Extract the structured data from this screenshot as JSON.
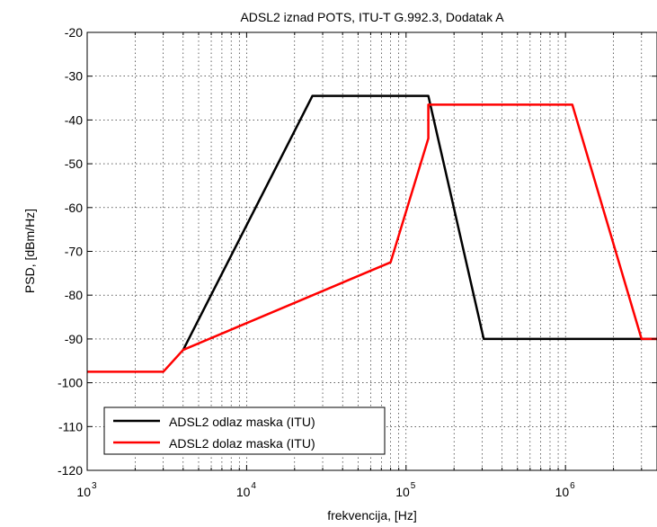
{
  "chart_data": {
    "type": "line",
    "title": "ADSL2 iznad POTS, ITU-T G.992.3, Dodatak A",
    "xlabel": "frekvencija, [Hz]",
    "ylabel": "PSD, [dBm/Hz]",
    "xscale": "log",
    "xlim": [
      1000,
      3750000
    ],
    "ylim": [
      -120,
      -20
    ],
    "x_ticks": [
      {
        "value": 1000,
        "base": "10",
        "exp": "3"
      },
      {
        "value": 10000,
        "base": "10",
        "exp": "4"
      },
      {
        "value": 100000,
        "base": "10",
        "exp": "5"
      },
      {
        "value": 1000000,
        "base": "10",
        "exp": "6"
      }
    ],
    "y_ticks": [
      {
        "value": -20,
        "label": "-20"
      },
      {
        "value": -30,
        "label": "-30"
      },
      {
        "value": -40,
        "label": "-40"
      },
      {
        "value": -50,
        "label": "-50"
      },
      {
        "value": -60,
        "label": "-60"
      },
      {
        "value": -70,
        "label": "-70"
      },
      {
        "value": -80,
        "label": "-80"
      },
      {
        "value": -90,
        "label": "-90"
      },
      {
        "value": -100,
        "label": "-100"
      },
      {
        "value": -110,
        "label": "-110"
      },
      {
        "value": -120,
        "label": "-120"
      }
    ],
    "grid": true,
    "legend_position": "bottom-left",
    "series": [
      {
        "name": "ADSL2 odlaz maska (ITU)",
        "color": "#000000",
        "points": [
          [
            4000,
            -92.5
          ],
          [
            25875,
            -34.5
          ],
          [
            138000,
            -34.5
          ],
          [
            307000,
            -90
          ],
          [
            3750000,
            -90
          ]
        ]
      },
      {
        "name": "ADSL2 dolaz maska (ITU)",
        "color": "#ff0000",
        "points": [
          [
            1000,
            -97.5
          ],
          [
            3000,
            -97.5
          ],
          [
            4000,
            -92.5
          ],
          [
            80000,
            -72.5
          ],
          [
            138000,
            -44.2
          ],
          [
            138000,
            -36.5
          ],
          [
            1104000,
            -36.5
          ],
          [
            3000000,
            -90
          ],
          [
            3750000,
            -90
          ]
        ]
      }
    ]
  }
}
